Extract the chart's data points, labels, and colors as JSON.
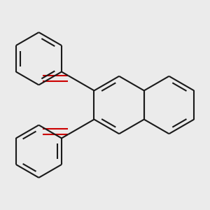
{
  "bg_color": "#ebebeb",
  "bond_color": "#1a1a1a",
  "oxygen_color": "#cc0000",
  "line_width": 1.5,
  "dbo": 0.018,
  "figsize": [
    3.0,
    3.0
  ],
  "dpi": 100
}
